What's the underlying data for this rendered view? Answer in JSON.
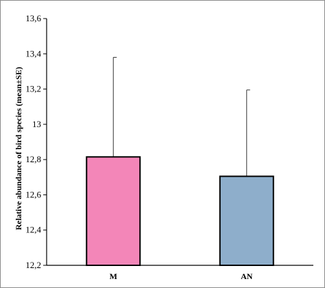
{
  "chart_data": {
    "type": "bar",
    "title": "",
    "xlabel": "",
    "ylabel": "Relative abundance of bird species (mean±SE)",
    "categories": [
      "M",
      "AN"
    ],
    "values": [
      12.815,
      12.705
    ],
    "errors": [
      0.565,
      0.49
    ],
    "colors": [
      "#f386b8",
      "#8eaecb"
    ],
    "ylim": [
      12.2,
      13.6
    ],
    "yticks": [
      12.2,
      12.4,
      12.6,
      12.8,
      13.0,
      13.2,
      13.4,
      13.6
    ],
    "ytick_labels": [
      "12,2",
      "12,4",
      "12,6",
      "12,8",
      "13",
      "13,2",
      "13,4",
      "13,6"
    ],
    "grid": false,
    "legend": "none"
  }
}
